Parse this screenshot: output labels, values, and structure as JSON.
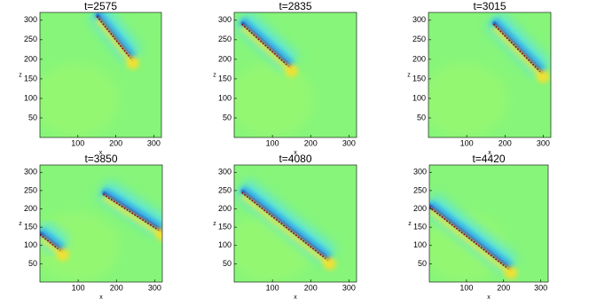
{
  "chart_data": [
    {
      "type": "heatmap",
      "title": "t=2575",
      "xlabel": "x",
      "ylabel": "z",
      "xlim": [
        0,
        320
      ],
      "ylim": [
        0,
        320
      ],
      "xticks": [
        100,
        200,
        300
      ],
      "yticks": [
        50,
        100,
        150,
        200,
        250,
        300
      ]
    },
    {
      "type": "heatmap",
      "title": "t=2835",
      "xlabel": "x",
      "ylabel": "z",
      "xlim": [
        0,
        320
      ],
      "ylim": [
        0,
        320
      ],
      "xticks": [
        100,
        200,
        300
      ],
      "yticks": [
        50,
        100,
        150,
        200,
        250,
        300
      ]
    },
    {
      "type": "heatmap",
      "title": "t=3015",
      "xlabel": "x",
      "ylabel": "z",
      "xlim": [
        0,
        320
      ],
      "ylim": [
        0,
        320
      ],
      "xticks": [
        100,
        200,
        300
      ],
      "yticks": [
        50,
        100,
        150,
        200,
        250,
        300
      ]
    },
    {
      "type": "heatmap",
      "title": "t=3850",
      "xlabel": "x",
      "ylabel": "z",
      "xlim": [
        0,
        320
      ],
      "ylim": [
        0,
        320
      ],
      "xticks": [
        100,
        200,
        300
      ],
      "yticks": [
        50,
        100,
        150,
        200,
        250,
        300
      ]
    },
    {
      "type": "heatmap",
      "title": "t=4080",
      "xlabel": "x",
      "ylabel": "z",
      "xlim": [
        0,
        320
      ],
      "ylim": [
        0,
        320
      ],
      "xticks": [
        100,
        200,
        300
      ],
      "yticks": [
        50,
        100,
        150,
        200,
        250,
        300
      ]
    },
    {
      "type": "heatmap",
      "title": "t=4420",
      "xlabel": "x",
      "ylabel": "z",
      "xlim": [
        0,
        320
      ],
      "ylim": [
        0,
        320
      ],
      "xticks": [
        100,
        200,
        300
      ],
      "yticks": [
        50,
        100,
        150,
        200,
        250,
        300
      ]
    }
  ]
}
